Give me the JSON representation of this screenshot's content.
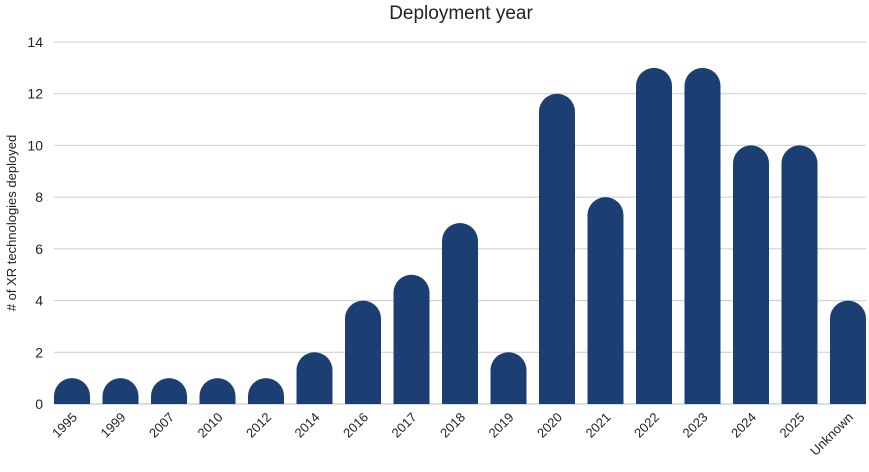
{
  "chart_data": {
    "type": "bar",
    "title": "Deployment year",
    "xlabel": "",
    "ylabel": "# of XR technologies deployed",
    "ylim": [
      0,
      14
    ],
    "yticks": [
      0,
      2,
      4,
      6,
      8,
      10,
      12,
      14
    ],
    "grid": true,
    "bar_color": "#1b3f73",
    "categories": [
      "1995",
      "1999",
      "2007",
      "2010",
      "2012",
      "2014",
      "2016",
      "2017",
      "2018",
      "2019",
      "2020",
      "2021",
      "2022",
      "2023",
      "2024",
      "2025",
      "Unknown"
    ],
    "values": [
      1,
      1,
      1,
      1,
      1,
      2,
      4,
      5,
      7,
      2,
      12,
      8,
      13,
      13,
      10,
      10,
      4
    ]
  }
}
